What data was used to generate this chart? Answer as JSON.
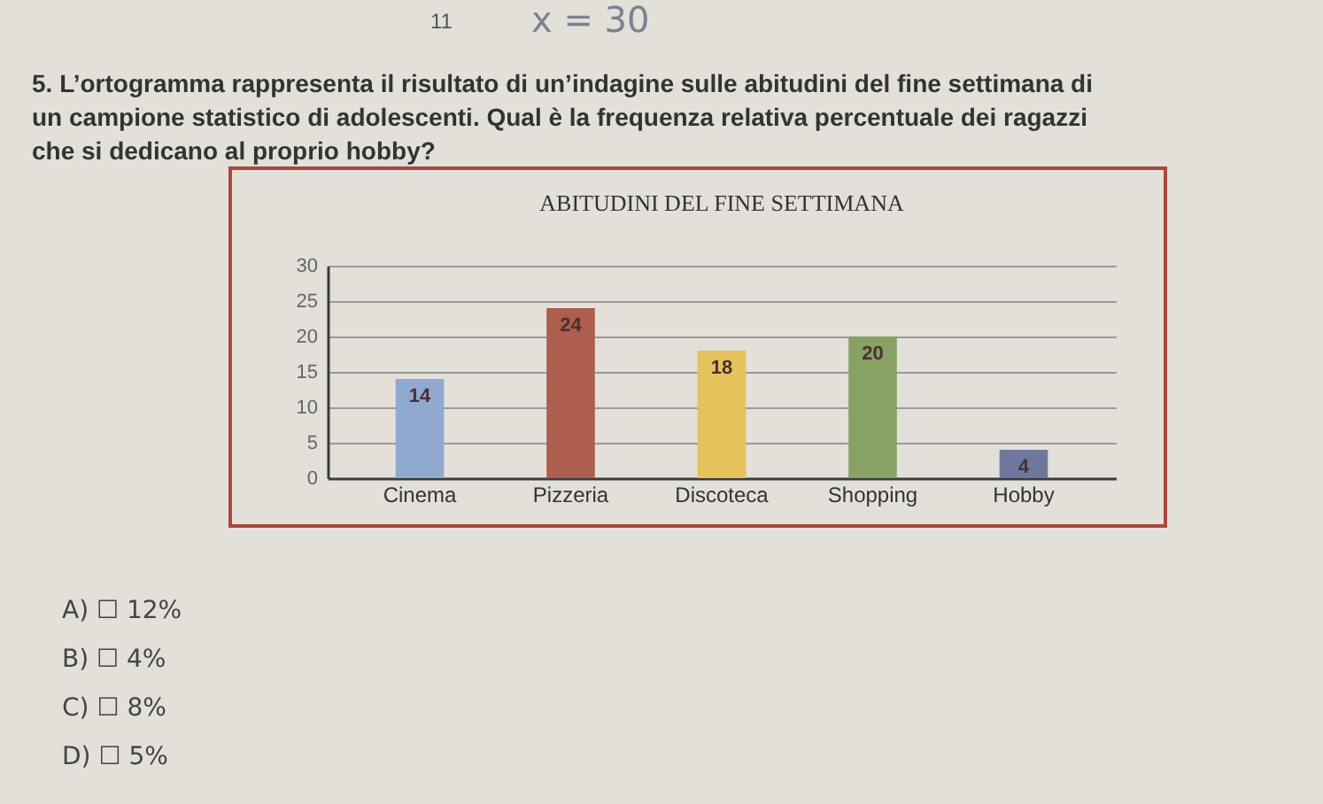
{
  "chart_data": {
    "type": "bar",
    "title": "ABITUDINI DEL FINE SETTIMANA",
    "categories": [
      "Cinema",
      "Pizzeria",
      "Discoteca",
      "Shopping",
      "Hobby"
    ],
    "values": [
      14,
      24,
      18,
      20,
      4
    ],
    "colors": [
      "#8fa9cf",
      "#ad5e4c",
      "#e6c25c",
      "#87a263",
      "#6e789f"
    ],
    "data_labels": true,
    "ylim": [
      0,
      30
    ],
    "yticks": [
      0,
      5,
      10,
      15,
      20,
      25,
      30
    ],
    "grid": "y",
    "annotations": [
      "11",
      "x = 30",
      "5. L’ortogramma rappresenta il risultato di un’indagine sulle abitudini del fine settimana di un campione statistico di adolescenti. Qual è la frequenza relativa percentuale dei ragazzi che si dedicano al proprio hobby?",
      "A) ☐ 12%",
      "B) ☐ 4%",
      "C) ☐ 8%",
      "D) ☐ 5%"
    ]
  }
}
